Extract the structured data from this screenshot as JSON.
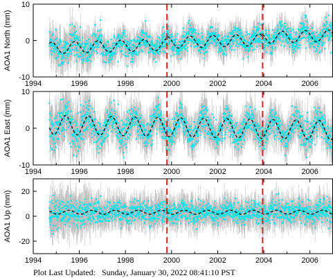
{
  "footer": {
    "label": "Plot Last Updated:",
    "timestamp": "Sunday, January 30, 2022 08:41:10 PST"
  },
  "colors": {
    "data_points": "#00e5ee",
    "error_bars": "#b4b4b4",
    "model_curve": "#000000",
    "event_lines": "#d42020"
  },
  "chart_data": [
    {
      "type": "scatter",
      "ylabel": "AOA1 North (mm)",
      "xlim": [
        1994,
        2007
      ],
      "ylim": [
        -10,
        10
      ],
      "xticks": [
        1994,
        1996,
        1998,
        2000,
        2002,
        2004,
        2006
      ],
      "xtick_labels": [
        "1994",
        "1996",
        "1998",
        "2000",
        "2002",
        "2004",
        "2006"
      ],
      "yticks": [
        -10,
        0,
        10
      ],
      "ytick_labels": [
        "-10",
        "0",
        "10"
      ],
      "grid": false,
      "event_lines_x": [
        1999.8,
        2003.95
      ],
      "data_range": [
        1994.7,
        2007.0
      ],
      "model": {
        "offset": -1.1,
        "trend": 0.18,
        "amplitude": 1.6,
        "phase": 0.55,
        "steps": [
          {
            "x": 1999.8,
            "delta": 0.6
          },
          {
            "x": 2003.95,
            "delta": 0.6
          }
        ]
      },
      "scatter_std": 1.6,
      "error_bar_half": 2.6
    },
    {
      "type": "scatter",
      "ylabel": "AOA1 East (mm)",
      "xlim": [
        1994,
        2007
      ],
      "ylim": [
        -10,
        10
      ],
      "xticks": [
        1994,
        1996,
        1998,
        2000,
        2002,
        2004,
        2006
      ],
      "xtick_labels": [
        "1994",
        "1996",
        "1998",
        "2000",
        "2002",
        "2004",
        "2006"
      ],
      "yticks": [
        -10,
        0,
        10
      ],
      "ytick_labels": [
        "-10",
        "0",
        "10"
      ],
      "grid": false,
      "event_lines_x": [
        1999.8,
        2003.95
      ],
      "data_range": [
        1994.7,
        2007.0
      ],
      "model": {
        "offset": 0.3,
        "trend": -0.12,
        "amplitude": 2.6,
        "phase": 0.15,
        "steps": []
      },
      "scatter_std": 1.9,
      "error_bar_half": 3.4
    },
    {
      "type": "scatter",
      "ylabel": "AOA1 Up (mm)",
      "xlim": [
        1994,
        2007
      ],
      "ylim": [
        -30,
        30
      ],
      "xticks": [
        1994,
        1996,
        1998,
        2000,
        2002,
        2004,
        2006
      ],
      "xtick_labels": [
        "1994",
        "1996",
        "1998",
        "2000",
        "2002",
        "2004",
        "2006"
      ],
      "yticks": [
        -20,
        0,
        20
      ],
      "ytick_labels": [
        "-20",
        "0",
        "20"
      ],
      "grid": false,
      "event_lines_x": [
        1999.8,
        2003.95
      ],
      "data_range": [
        1994.7,
        2007.0
      ],
      "model": {
        "offset": 3.2,
        "trend": 0.0,
        "amplitude": 1.6,
        "phase": 0.3,
        "steps": []
      },
      "scatter_std": 4.2,
      "error_bar_half": 9.0
    }
  ]
}
